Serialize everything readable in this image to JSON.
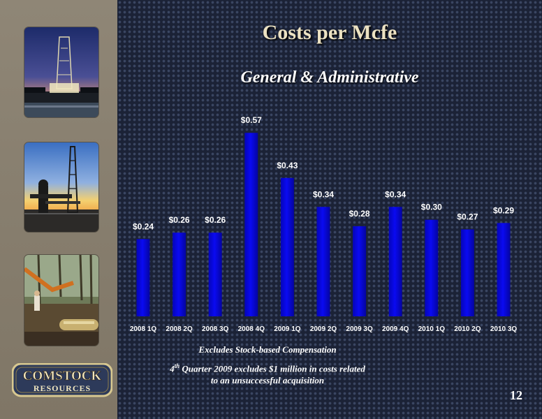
{
  "slide": {
    "title": "Costs per Mcfe",
    "subtitle": "General & Administrative",
    "note_line1": "Excludes Stock-based Compensation",
    "note_line2_sup": "th",
    "note_line2_num": "4",
    "note_line2_rest": " Quarter 2009 excludes $1 million in costs related",
    "note_line3": "to an unsuccessful acquisition",
    "page_number": "12",
    "logo_top": "COMSTOCK",
    "logo_bottom": "RESOURCES",
    "colors": {
      "bar": "#0a0af2",
      "background": "#1b2236",
      "sidebar": "#8a8170",
      "title": "#ece2c2"
    }
  },
  "chart_data": {
    "type": "bar",
    "title": "General & Administrative",
    "categories": [
      "2008 1Q",
      "2008 2Q",
      "2008 3Q",
      "2008 4Q",
      "2009 1Q",
      "2009 2Q",
      "2009 3Q",
      "2009 4Q",
      "2010 1Q",
      "2010 2Q",
      "2010 3Q"
    ],
    "values": [
      0.24,
      0.26,
      0.26,
      0.57,
      0.43,
      0.34,
      0.28,
      0.34,
      0.3,
      0.27,
      0.29
    ],
    "value_labels": [
      "$0.24",
      "$0.26",
      "$0.26",
      "$0.57",
      "$0.43",
      "$0.34",
      "$0.28",
      "$0.34",
      "$0.30",
      "$0.27",
      "$0.29"
    ],
    "ylim": [
      0,
      0.6
    ],
    "grid": false,
    "legend": "none"
  }
}
